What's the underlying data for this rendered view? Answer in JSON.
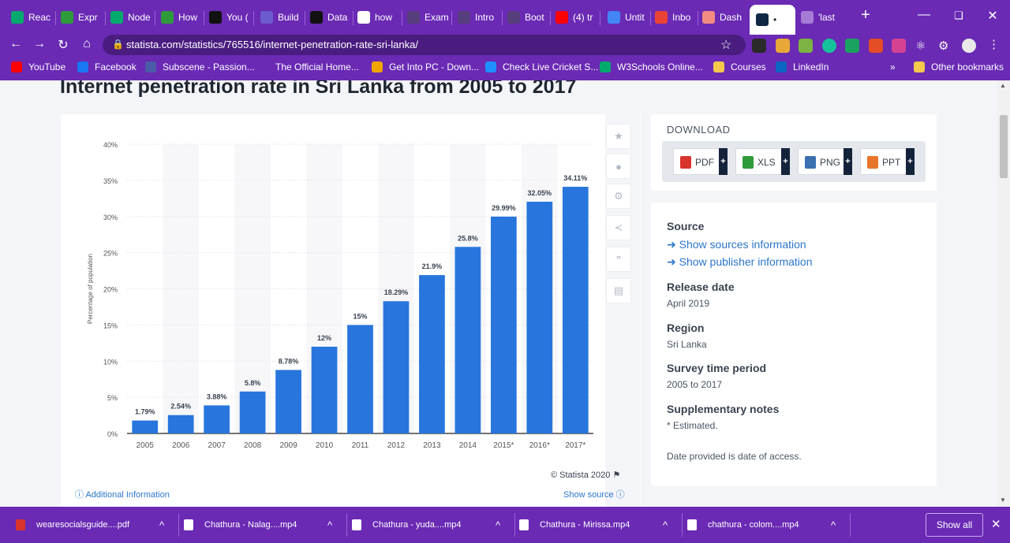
{
  "browser": {
    "tabs": [
      {
        "label": "Reac",
        "icon": "w3schools-icon",
        "color": "#04aa6d"
      },
      {
        "label": "Expr",
        "icon": "gear-icon",
        "color": "#2f9a3a"
      },
      {
        "label": "Node",
        "icon": "w3schools-icon",
        "color": "#04aa6d"
      },
      {
        "label": "How",
        "icon": "dollar-icon",
        "color": "#2f9a3a"
      },
      {
        "label": "You (",
        "icon": "medium-icon",
        "color": "#111111"
      },
      {
        "label": "Build",
        "icon": "triangle-icon",
        "color": "#6d5bd0"
      },
      {
        "label": "Data",
        "icon": "medium-icon",
        "color": "#111111"
      },
      {
        "label": "how",
        "icon": "google-icon",
        "color": "#ffffff"
      },
      {
        "label": "Exam",
        "icon": "bootstrap-icon",
        "color": "#563d7c"
      },
      {
        "label": "Intro",
        "icon": "bootstrap-icon",
        "color": "#563d7c"
      },
      {
        "label": "Boot",
        "icon": "bootstrap-icon",
        "color": "#563d7c"
      },
      {
        "label": "(4) tr",
        "icon": "youtube-icon",
        "color": "#ff0000"
      },
      {
        "label": "Untit",
        "icon": "docs-icon",
        "color": "#4285f4"
      },
      {
        "label": "Inbo",
        "icon": "gmail-icon",
        "color": "#ea4335"
      },
      {
        "label": "Dash",
        "icon": "dash-icon",
        "color": "#f28b82"
      },
      {
        "label": "•",
        "icon": "statista-icon",
        "color": "#0f2742"
      },
      {
        "label": "'last",
        "icon": "trophy-icon",
        "color": "#a67bd6"
      }
    ],
    "new_tab": "+",
    "url": "statista.com/statistics/765516/internet-penetration-rate-sri-lanka/",
    "bookmarks": [
      {
        "label": "YouTube",
        "icon": "youtube-icon",
        "color": "#ff0000"
      },
      {
        "label": "Facebook",
        "icon": "facebook-icon",
        "color": "#1877f2"
      },
      {
        "label": "Subscene - Passion...",
        "icon": "subscene-icon",
        "color": "#4a5ba8"
      },
      {
        "label": "The Official Home...",
        "icon": "spinner-icon",
        "color": "#6a2ab4"
      },
      {
        "label": "Get Into PC - Down...",
        "icon": "getintopc-icon",
        "color": "#f0a500"
      },
      {
        "label": "Check Live Cricket S...",
        "icon": "cricket-icon",
        "color": "#1e90ff"
      },
      {
        "label": "W3Schools Online...",
        "icon": "w3schools-icon",
        "color": "#04aa6d"
      },
      {
        "label": "Courses",
        "icon": "folder-icon",
        "color": "#f6c84c"
      },
      {
        "label": "LinkedIn",
        "icon": "linkedin-icon",
        "color": "#0a66c2"
      }
    ],
    "more_bookmarks": "»",
    "other_bookmarks": "Other bookmarks"
  },
  "page": {
    "title": "Internet penetration rate in Sri Lanka from 2005 to 2017",
    "credit": "© Statista 2020",
    "additional_info": "Additional Information",
    "show_source": "Show source"
  },
  "chart_data": {
    "type": "bar",
    "categories": [
      "2005",
      "2006",
      "2007",
      "2008",
      "2009",
      "2010",
      "2011",
      "2012",
      "2013",
      "2014",
      "2015*",
      "2016*",
      "2017*"
    ],
    "values": [
      1.79,
      2.54,
      3.88,
      5.8,
      8.78,
      12,
      15,
      18.29,
      21.9,
      25.8,
      29.99,
      32.05,
      34.11
    ],
    "data_labels": [
      "1.79%",
      "2.54%",
      "3.88%",
      "5.8%",
      "8.78%",
      "12%",
      "15%",
      "18.29%",
      "21.9%",
      "25.8%",
      "29.99%",
      "32.05%",
      "34.11%"
    ],
    "ylabel": "Percentage of population",
    "ylim": [
      0,
      40
    ],
    "yticks": [
      "0%",
      "5%",
      "10%",
      "15%",
      "20%",
      "25%",
      "30%",
      "35%",
      "40%"
    ],
    "bar_color": "#2876dd",
    "grid": true
  },
  "download": {
    "title": "DOWNLOAD",
    "buttons": [
      {
        "label": "PDF",
        "color": "#d9342b"
      },
      {
        "label": "XLS",
        "color": "#2f9a3a"
      },
      {
        "label": "PNG",
        "color": "#3a6fb0"
      },
      {
        "label": "PPT",
        "color": "#e8752a"
      }
    ]
  },
  "info": {
    "source_h": "Source",
    "show_sources": "Show sources information",
    "show_publisher": "Show publisher information",
    "release_h": "Release date",
    "release_v": "April 2019",
    "region_h": "Region",
    "region_v": "Sri Lanka",
    "period_h": "Survey time period",
    "period_v": "2005 to 2017",
    "notes_h": "Supplementary notes",
    "notes_v": "* Estimated.",
    "access_note": "Date provided is date of access."
  },
  "shelf": {
    "items": [
      {
        "label": "wearesocialsguide....pdf",
        "color": "#d9342b"
      },
      {
        "label": "Chathura - Nalag....mp4",
        "color": "#ffffff"
      },
      {
        "label": "Chathura -  yuda....mp4",
        "color": "#ffffff"
      },
      {
        "label": "Chathura - Mirissa.mp4",
        "color": "#ffffff"
      },
      {
        "label": "chathura - colom....mp4",
        "color": "#ffffff"
      }
    ],
    "show_all": "Show all"
  }
}
